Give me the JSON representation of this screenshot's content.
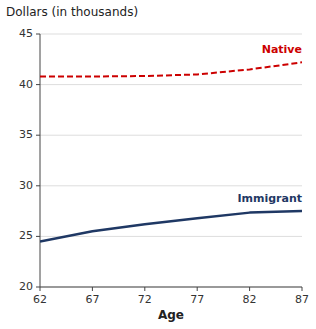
{
  "chart_data": {
    "type": "line",
    "xlabel": "Age",
    "ylabel": "Dollars (in thousands)",
    "x": [
      62,
      67,
      72,
      77,
      82,
      87
    ],
    "series": [
      {
        "name": "Native",
        "color": "#cc0000",
        "line_style": "dashed",
        "values": [
          40.8,
          40.8,
          40.85,
          41.0,
          41.5,
          42.2
        ]
      },
      {
        "name": "Immigrant",
        "color": "#1f3864",
        "line_style": "solid",
        "values": [
          24.5,
          25.5,
          26.2,
          26.8,
          27.35,
          27.5
        ]
      }
    ],
    "xlim": [
      62,
      87
    ],
    "ylim": [
      20,
      45
    ],
    "xticks": [
      62,
      67,
      72,
      77,
      82,
      87
    ],
    "yticks": [
      20,
      25,
      30,
      35,
      40,
      45
    ],
    "grid": true
  }
}
